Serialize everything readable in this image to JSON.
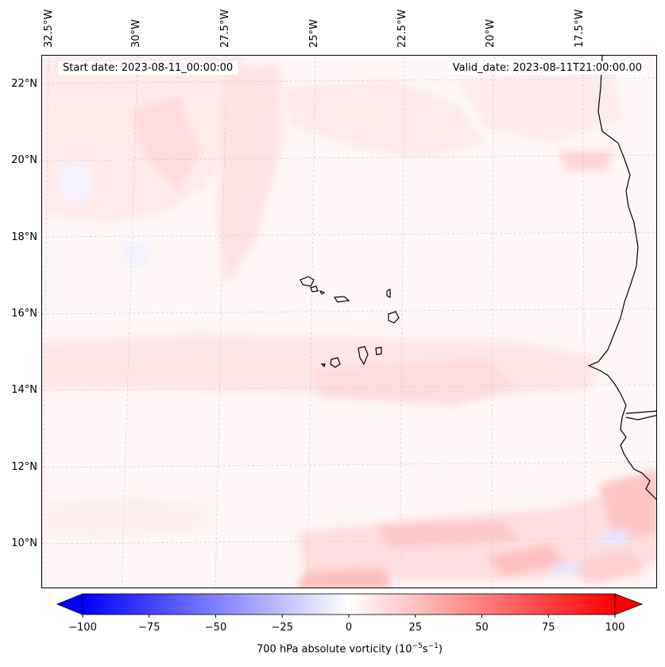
{
  "header": {
    "start_date": "Start date: 2023-08-11_00:00:00",
    "valid_date": "Valid_date: 2023-08-11T21:00:00.00"
  },
  "axes": {
    "lon_labels": [
      "32.5°W",
      "30°W",
      "27.5°W",
      "25°W",
      "22.5°W",
      "20°W",
      "17.5°W"
    ],
    "lat_labels": [
      "22°N",
      "20°N",
      "18°N",
      "16°N",
      "14°N",
      "12°N",
      "10°N"
    ]
  },
  "colorbar": {
    "title": "700 hPa absolute vorticity (10",
    "title_exp1": "−5",
    "title_mid": "s",
    "title_exp2": "−1",
    "title_end": ")",
    "tick_labels": [
      "−100",
      "−75",
      "−50",
      "−25",
      "0",
      "25",
      "50",
      "75",
      "100"
    ],
    "range": [
      -100,
      100
    ],
    "color_low": "#0000ff",
    "color_mid": "#ffffff",
    "color_high": "#ff0000"
  },
  "map_data": {
    "field": "700 hPa absolute vorticity",
    "units": "1e-5 s-1",
    "region": "Cape Verde / West African coast",
    "coastline_color": "#000000",
    "gridline_color": "#cccccc"
  }
}
